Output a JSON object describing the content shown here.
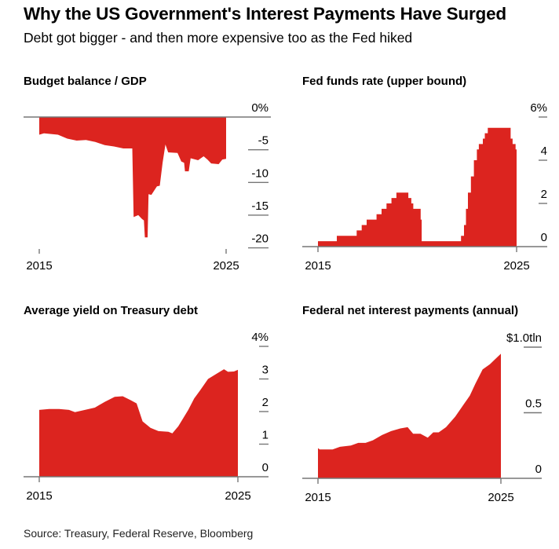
{
  "header": {
    "title": "Why the US Government's Interest Payments Have Surged",
    "subtitle": "Debt got bigger - and then more expensive too as the Fed hiked"
  },
  "footer": {
    "source": "Source: Treasury, Federal Reserve, Bloomberg"
  },
  "colors": {
    "fill": "#dc241f",
    "axis": "#777777"
  },
  "chart_data": [
    {
      "type": "area",
      "title": "Budget balance / GDP",
      "xlim": [
        2015,
        2025
      ],
      "ylim": [
        -20,
        0
      ],
      "x_ticks": [
        2015,
        2025
      ],
      "x_tick_labels": [
        "2015",
        "2025"
      ],
      "y_ticks": [
        0,
        -5,
        -10,
        -15,
        -20
      ],
      "y_tick_labels": [
        "0%",
        "-5",
        "-10",
        "-15",
        "-20"
      ],
      "step": false,
      "x": [
        2015.0,
        2015.25,
        2016.0,
        2016.5,
        2017.0,
        2017.5,
        2018.0,
        2018.5,
        2019.0,
        2019.5,
        2019.98,
        2020.05,
        2020.3,
        2020.5,
        2020.6,
        2020.65,
        2020.8,
        2020.85,
        2021.0,
        2021.3,
        2021.45,
        2021.6,
        2021.75,
        2021.9,
        2022.4,
        2022.6,
        2022.75,
        2022.8,
        2023.0,
        2023.1,
        2023.5,
        2023.8,
        2024.0,
        2024.2,
        2024.6,
        2024.8,
        2025.0
      ],
      "y": [
        -2.7,
        -2.5,
        -2.7,
        -3.3,
        -3.6,
        -3.5,
        -3.8,
        -4.3,
        -4.5,
        -4.8,
        -4.8,
        -15.3,
        -15.0,
        -15.6,
        -15.8,
        -18.4,
        -18.4,
        -11.8,
        -11.9,
        -10.6,
        -10.5,
        -7.0,
        -4.2,
        -5.4,
        -5.5,
        -6.8,
        -7.0,
        -8.3,
        -8.3,
        -6.3,
        -6.6,
        -6.0,
        -6.5,
        -7.1,
        -7.2,
        -6.5,
        -6.4
      ]
    },
    {
      "type": "area",
      "title": "Fed funds rate (upper bound)",
      "xlim": [
        2015,
        2025
      ],
      "ylim": [
        0,
        6
      ],
      "x_ticks": [
        2015,
        2025
      ],
      "x_tick_labels": [
        "2015",
        "2025"
      ],
      "y_ticks": [
        6,
        4,
        2,
        0
      ],
      "y_tick_labels": [
        "6%",
        "4",
        "2",
        "0"
      ],
      "step": true,
      "x": [
        2015.0,
        2015.95,
        2016.95,
        2017.2,
        2017.45,
        2017.95,
        2018.2,
        2018.45,
        2018.7,
        2018.95,
        2019.55,
        2019.7,
        2019.8,
        2020.17,
        2020.22,
        2022.2,
        2022.35,
        2022.45,
        2022.55,
        2022.7,
        2022.85,
        2023.0,
        2023.1,
        2023.3,
        2023.4,
        2023.55,
        2024.7,
        2024.8,
        2024.95,
        2025.0
      ],
      "y": [
        0.25,
        0.5,
        0.75,
        1.0,
        1.25,
        1.5,
        1.75,
        2.0,
        2.25,
        2.5,
        2.25,
        2.0,
        1.75,
        1.25,
        0.25,
        0.5,
        1.0,
        1.75,
        2.5,
        3.25,
        4.0,
        4.5,
        4.75,
        5.0,
        5.25,
        5.5,
        5.0,
        4.75,
        4.5,
        4.5
      ]
    },
    {
      "type": "area",
      "title": "Average yield on Treasury debt",
      "xlim": [
        2015,
        2025
      ],
      "ylim": [
        0,
        4
      ],
      "x_ticks": [
        2015,
        2025
      ],
      "x_tick_labels": [
        "2015",
        "2025"
      ],
      "y_ticks": [
        4,
        3,
        2,
        1,
        0
      ],
      "y_tick_labels": [
        "4%",
        "3",
        "2",
        "1",
        "0"
      ],
      "step": false,
      "x": [
        2015.0,
        2015.5,
        2016.0,
        2016.5,
        2016.8,
        2017.3,
        2017.8,
        2018.3,
        2018.8,
        2019.2,
        2019.6,
        2019.9,
        2020.2,
        2020.6,
        2021.0,
        2021.5,
        2021.7,
        2022.0,
        2022.5,
        2022.8,
        2023.1,
        2023.5,
        2023.9,
        2024.3,
        2024.5,
        2024.8,
        2025.0
      ],
      "y": [
        2.05,
        2.08,
        2.08,
        2.05,
        1.98,
        2.05,
        2.12,
        2.3,
        2.45,
        2.47,
        2.35,
        2.25,
        1.7,
        1.5,
        1.4,
        1.38,
        1.33,
        1.55,
        2.05,
        2.4,
        2.65,
        3.0,
        3.15,
        3.3,
        3.22,
        3.23,
        3.28
      ]
    },
    {
      "type": "area",
      "title": "Federal net interest payments (annual)",
      "xlim": [
        2015,
        2025
      ],
      "ylim": [
        0,
        1.0
      ],
      "x_ticks": [
        2015,
        2025
      ],
      "x_tick_labels": [
        "2015",
        "2025"
      ],
      "y_ticks": [
        1.0,
        0.5,
        0
      ],
      "y_tick_labels": [
        "$1.0tln",
        "0.5",
        "0"
      ],
      "step": false,
      "x": [
        2015.0,
        2015.1,
        2015.8,
        2016.2,
        2016.8,
        2017.2,
        2017.6,
        2018.0,
        2018.5,
        2019.0,
        2019.5,
        2019.9,
        2020.2,
        2020.6,
        2021.0,
        2021.3,
        2021.6,
        2022.0,
        2022.5,
        2023.0,
        2023.3,
        2023.6,
        2024.0,
        2024.4,
        2024.7,
        2025.0
      ],
      "y": [
        0.23,
        0.22,
        0.22,
        0.24,
        0.25,
        0.27,
        0.27,
        0.29,
        0.33,
        0.36,
        0.38,
        0.39,
        0.34,
        0.34,
        0.31,
        0.35,
        0.35,
        0.39,
        0.47,
        0.57,
        0.63,
        0.72,
        0.83,
        0.87,
        0.91,
        0.95
      ]
    }
  ]
}
